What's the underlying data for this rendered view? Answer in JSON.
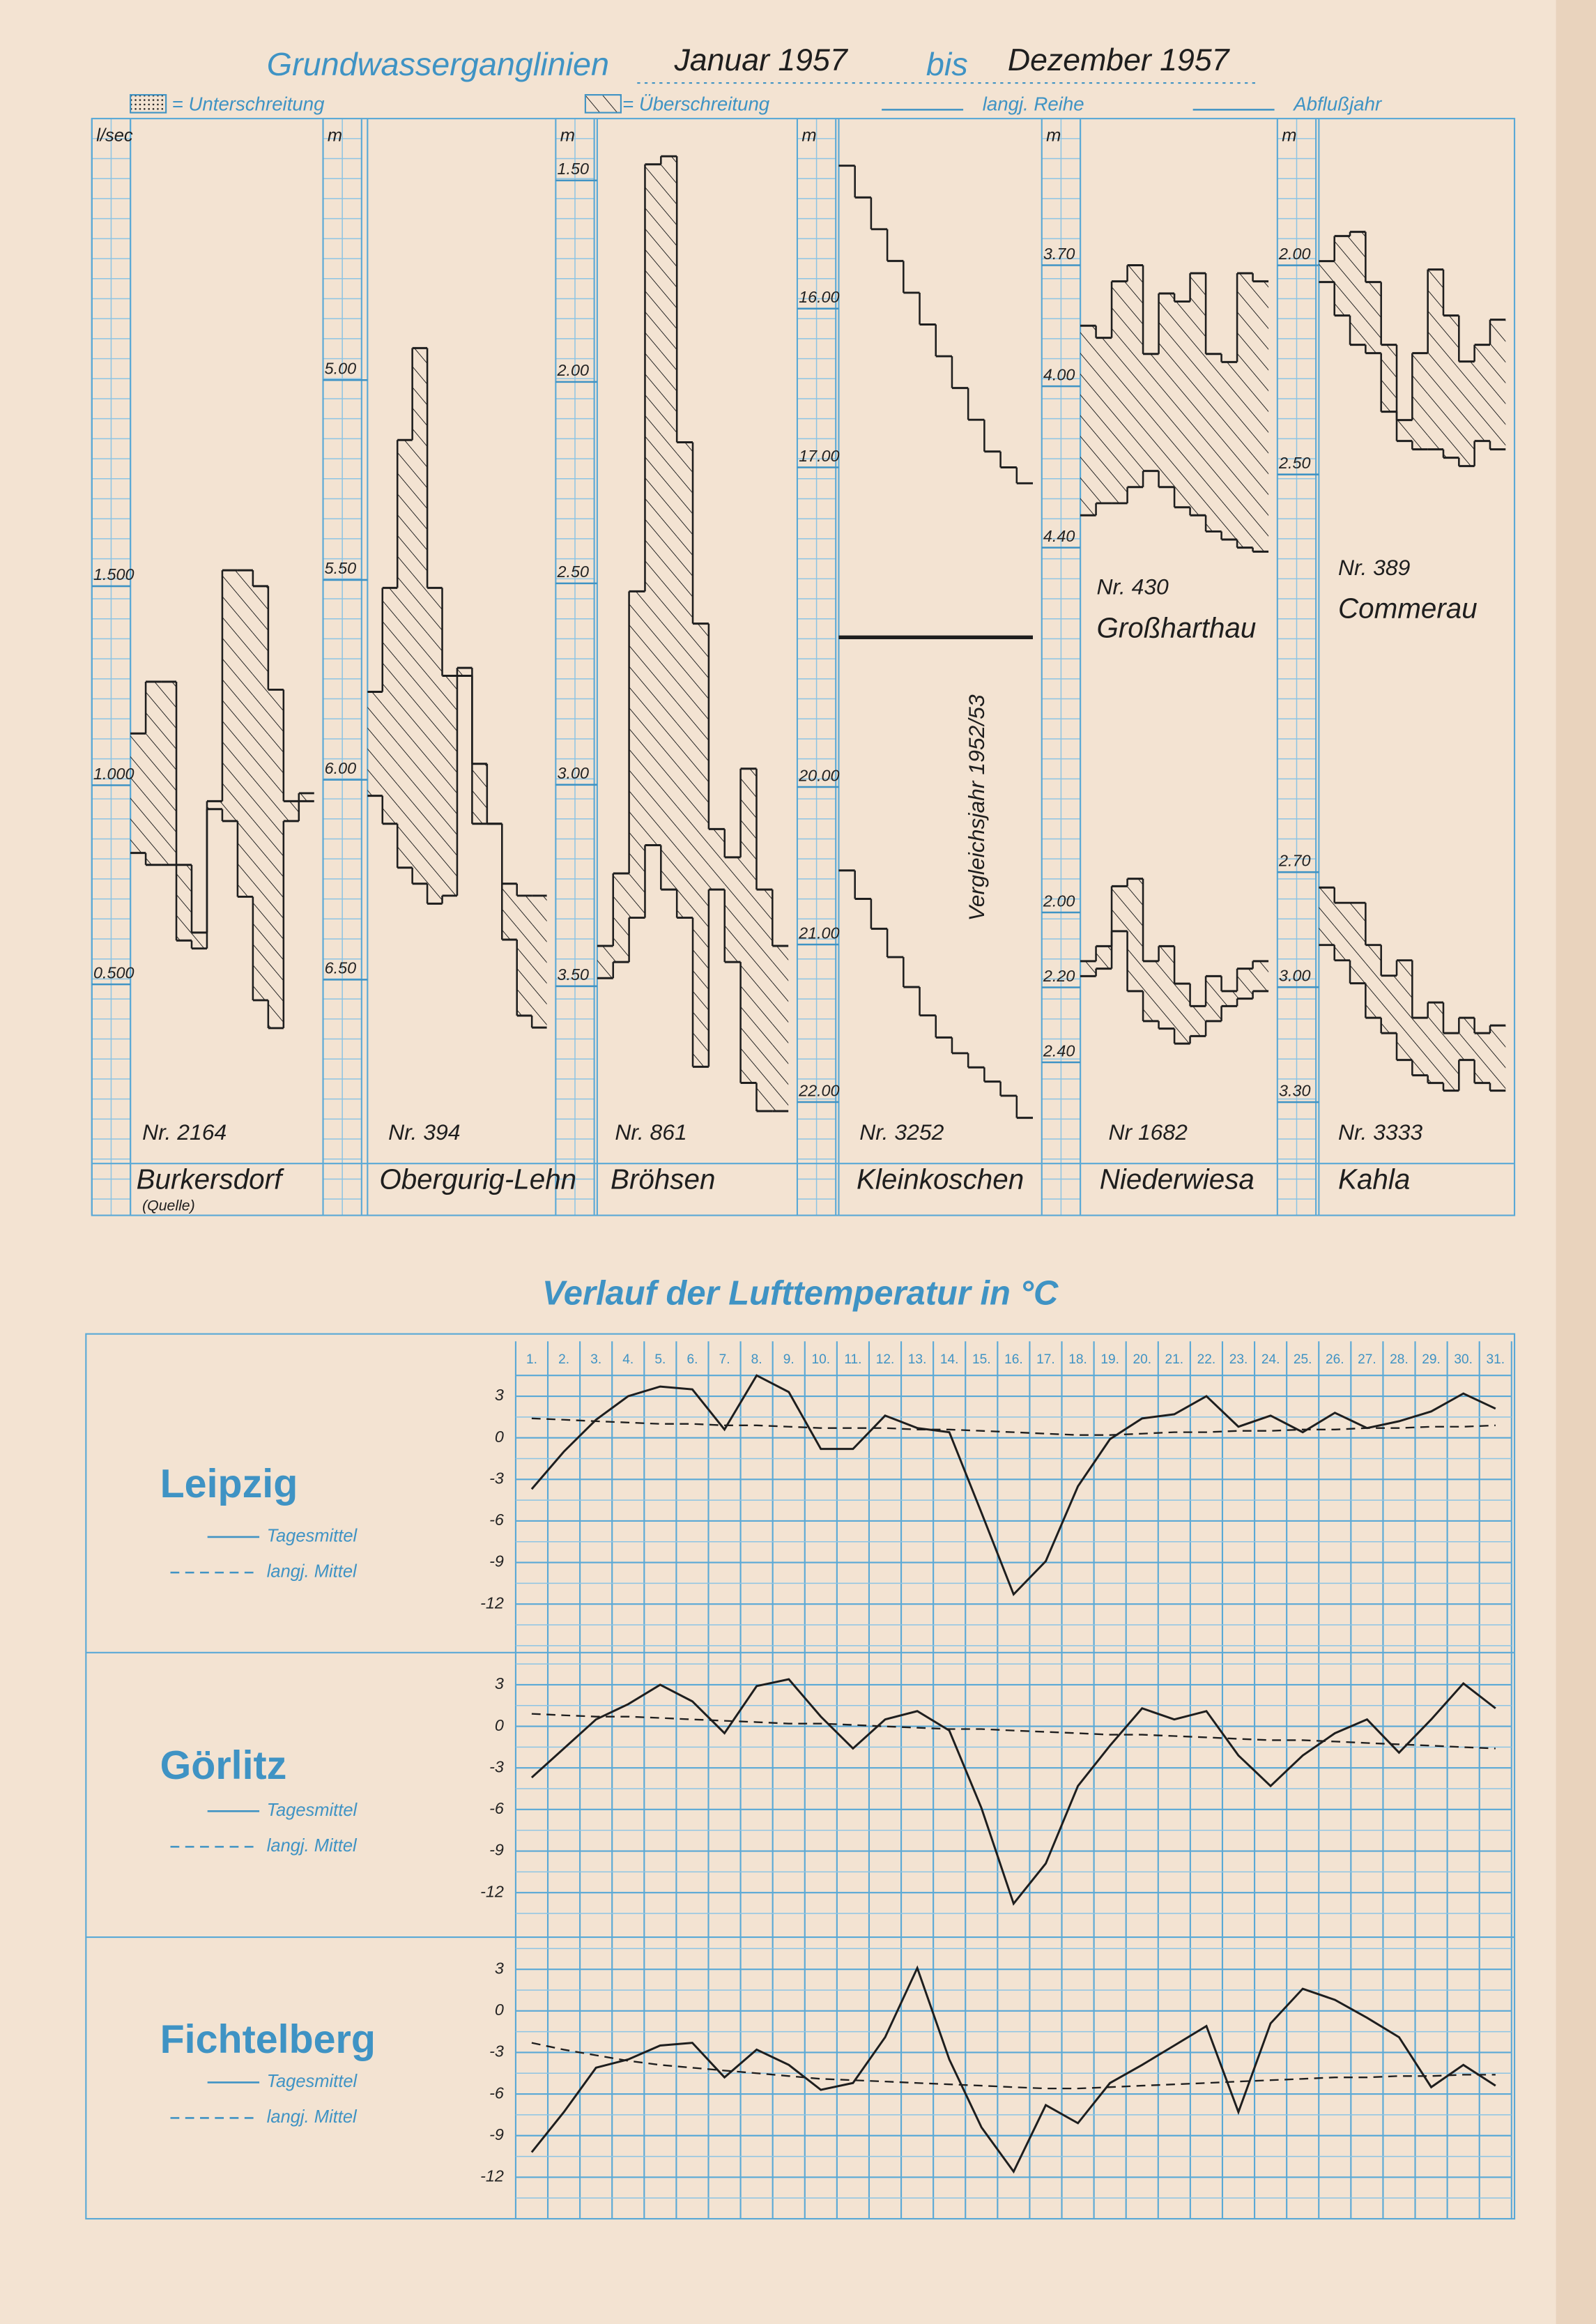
{
  "header": {
    "title": "Grundwasserganglinien",
    "from": "Januar 1957",
    "between": "bis",
    "to": "Dezember 1957",
    "legend": [
      "= Unterschreitung",
      "= Überschreitung",
      "langj. Reihe",
      "Abflußjahr"
    ],
    "temperature_title": "Verlauf der Lufttemperatur in °C"
  },
  "chart_data": [
    {
      "type": "step",
      "unit": "l/sec",
      "number": "Nr. 2164",
      "name": "Burkersdorf",
      "note": "(Quelle)",
      "ylim": [
        0.05,
        2.6
      ],
      "yticks": [
        {
          "value": 1.5,
          "label": "1.500"
        },
        {
          "value": 1.0,
          "label": "1.000"
        },
        {
          "value": 0.5,
          "label": "0.500"
        }
      ],
      "series": [
        {
          "color": "#1e1e1e",
          "values": [
            1.13,
            1.26,
            1.26,
            0.8,
            0.63,
            0.96,
            1.54,
            1.54,
            1.5,
            1.24,
            0.96,
            0.98
          ]
        },
        {
          "color": "#1e1e1e",
          "values": [
            0.83,
            0.8,
            0.8,
            0.61,
            0.59,
            0.94,
            0.91,
            0.72,
            0.46,
            0.39,
            0.91,
            0.96
          ]
        }
      ]
    },
    {
      "type": "step",
      "unit": "m",
      "number": "Nr. 394",
      "name": "Obergurig-Lehn",
      "ylim": [
        6.96,
        4.42
      ],
      "yticks": [
        {
          "value": 5.0,
          "label": "5.00"
        },
        {
          "value": 5.5,
          "label": "5.50"
        },
        {
          "value": 6.0,
          "label": "6.00"
        },
        {
          "value": 6.5,
          "label": "6.50"
        }
      ],
      "series": [
        {
          "color": "#1e1e1e",
          "values": [
            5.78,
            5.52,
            5.15,
            4.92,
            5.52,
            5.74,
            5.72,
            6.11,
            6.11,
            6.26,
            6.29,
            6.29
          ]
        },
        {
          "color": "#1e1e1e",
          "values": [
            6.04,
            6.11,
            6.22,
            6.26,
            6.31,
            6.29,
            5.74,
            5.96,
            6.11,
            6.4,
            6.59,
            6.62
          ]
        }
      ]
    },
    {
      "type": "step",
      "unit": "m",
      "number": "Nr. 861",
      "name": "Bröhsen",
      "ylim": [
        3.94,
        1.42
      ],
      "yticks": [
        {
          "value": 1.5,
          "label": "1.50"
        },
        {
          "value": 2.0,
          "label": "2.00"
        },
        {
          "value": 2.5,
          "label": "2.50"
        },
        {
          "value": 3.0,
          "label": "3.00"
        },
        {
          "value": 3.5,
          "label": "3.50"
        }
      ],
      "series": [
        {
          "color": "#1e1e1e",
          "values": [
            3.4,
            3.22,
            2.52,
            1.46,
            1.44,
            2.15,
            2.6,
            3.11,
            3.18,
            2.96,
            3.26,
            3.4
          ]
        },
        {
          "color": "#1e1e1e",
          "values": [
            3.48,
            3.44,
            3.33,
            3.15,
            3.26,
            3.33,
            3.7,
            3.26,
            3.44,
            3.74,
            3.81,
            3.81
          ]
        }
      ]
    },
    {
      "type": "step",
      "unit": "m",
      "ylim": [
        18.07,
        14.99
      ],
      "yticks": [
        {
          "value": 16,
          "label": "16.00"
        },
        {
          "value": 17,
          "label": "17.00"
        }
      ],
      "series": [
        {
          "color": "#1e1e1e",
          "values": [
            15.1,
            15.3,
            15.5,
            15.7,
            15.9,
            16.1,
            16.3,
            16.5,
            16.7,
            16.9,
            17.0,
            17.1
          ]
        }
      ]
    },
    {
      "type": "step",
      "number": "Nr. 3252",
      "name": "Kleinkoschen",
      "note": "Vergleichsjahr 1952/53",
      "ylim": [
        22.39,
        19.05
      ],
      "yticks": [
        {
          "value": 20,
          "label": "20.00"
        },
        {
          "value": 21,
          "label": "21.00"
        },
        {
          "value": 22,
          "label": "22.00"
        }
      ],
      "series": [
        {
          "color": "#1e1e1e",
          "values": [
            20.53,
            20.71,
            20.9,
            21.08,
            21.27,
            21.45,
            21.59,
            21.69,
            21.78,
            21.87,
            21.96,
            22.1
          ]
        }
      ]
    },
    {
      "type": "step",
      "unit": "m",
      "number": "Nr. 430",
      "name": "Großharthau",
      "ylim": [
        5.1,
        3.41
      ],
      "yticks": [
        {
          "value": 3.7,
          "label": "3.70"
        },
        {
          "value": 4.0,
          "label": "4.00"
        },
        {
          "value": 4.4,
          "label": "4.40"
        }
      ],
      "series": [
        {
          "color": "#1e1e1e",
          "values": [
            3.85,
            3.88,
            3.74,
            3.7,
            3.92,
            3.77,
            3.79,
            3.72,
            3.92,
            3.94,
            3.72,
            3.74
          ]
        },
        {
          "color": "#1e1e1e",
          "values": [
            4.32,
            4.29,
            4.29,
            4.25,
            4.21,
            4.25,
            4.3,
            4.32,
            4.36,
            4.38,
            4.4,
            4.41
          ]
        }
      ]
    },
    {
      "type": "step",
      "number": "Nr 1682",
      "name": "Niederwiesa",
      "ylim": [
        2.67,
        1.78
      ],
      "yticks": [
        {
          "value": 2.0,
          "label": "2.00"
        },
        {
          "value": 2.2,
          "label": "2.20"
        },
        {
          "value": 2.4,
          "label": "2.40"
        }
      ],
      "series": [
        {
          "color": "#1e1e1e",
          "values": [
            2.13,
            2.09,
            1.93,
            1.91,
            2.13,
            2.09,
            2.19,
            2.25,
            2.17,
            2.21,
            2.15,
            2.13
          ]
        },
        {
          "color": "#1e1e1e",
          "values": [
            2.17,
            2.15,
            2.05,
            2.21,
            2.29,
            2.31,
            2.35,
            2.33,
            2.29,
            2.25,
            2.23,
            2.21
          ]
        }
      ]
    },
    {
      "type": "step",
      "unit": "m",
      "number": "Nr. 389",
      "name": "Commerau",
      "ylim": [
        3.35,
        1.72
      ],
      "yticks": [
        {
          "value": 2.0,
          "label": "2.00"
        },
        {
          "value": 2.5,
          "label": "2.50"
        }
      ],
      "series": [
        {
          "color": "#1e1e1e",
          "values": [
            1.99,
            1.93,
            1.92,
            2.04,
            2.19,
            2.37,
            2.21,
            2.01,
            2.12,
            2.23,
            2.19,
            2.13
          ]
        },
        {
          "color": "#1e1e1e",
          "values": [
            2.04,
            2.12,
            2.19,
            2.21,
            2.35,
            2.42,
            2.44,
            2.44,
            2.46,
            2.48,
            2.42,
            2.44
          ]
        }
      ]
    },
    {
      "type": "step",
      "number": "Nr. 3333",
      "name": "Kahla",
      "ylim": [
        3.46,
        2.59
      ],
      "yticks": [
        {
          "value": 2.7,
          "label": "2.70"
        },
        {
          "value": 3.0,
          "label": "3.00"
        },
        {
          "value": 3.3,
          "label": "3.30"
        }
      ],
      "series": [
        {
          "color": "#1e1e1e",
          "values": [
            2.74,
            2.78,
            2.78,
            2.89,
            2.97,
            2.93,
            3.08,
            3.04,
            3.12,
            3.08,
            3.12,
            3.1
          ]
        },
        {
          "color": "#1e1e1e",
          "values": [
            2.89,
            2.93,
            2.99,
            3.08,
            3.12,
            3.19,
            3.23,
            3.25,
            3.27,
            3.19,
            3.25,
            3.27
          ]
        }
      ]
    },
    {
      "type": "line",
      "station": "Leipzig",
      "categories": [
        "1.",
        "2.",
        "3.",
        "4.",
        "5.",
        "6.",
        "7.",
        "8.",
        "9.",
        "10.",
        "11.",
        "12.",
        "13.",
        "14.",
        "15.",
        "16.",
        "17.",
        "18.",
        "19.",
        "20.",
        "21.",
        "22.",
        "23.",
        "24.",
        "25.",
        "26.",
        "27.",
        "28.",
        "29.",
        "30.",
        "31."
      ],
      "ylim": [
        -15.5,
        4.5
      ],
      "yticks": [
        3,
        0,
        -3,
        -6,
        -9,
        -12
      ],
      "grid": true,
      "series": [
        {
          "name": "Tagesmittel",
          "color": "#1e1e1e",
          "dash": false,
          "values": [
            -3.7,
            -1,
            1.3,
            3,
            3.7,
            3.5,
            0.6,
            4.5,
            3.3,
            -0.8,
            -0.8,
            1.6,
            0.7,
            0.4,
            -5.4,
            -11.3,
            -8.9,
            -3.5,
            -0.1,
            1.4,
            1.7,
            3,
            0.8,
            1.6,
            0.4,
            1.8,
            0.7,
            1.2,
            1.9,
            3.2,
            2.1
          ]
        },
        {
          "name": "langj. Mittel",
          "color": "#1e1e1e",
          "dash": true,
          "values": [
            1.4,
            1.3,
            1.2,
            1.1,
            1.0,
            1.0,
            0.9,
            0.9,
            0.8,
            0.7,
            0.7,
            0.7,
            0.6,
            0.6,
            0.5,
            0.4,
            0.3,
            0.2,
            0.2,
            0.3,
            0.4,
            0.4,
            0.5,
            0.5,
            0.6,
            0.6,
            0.7,
            0.7,
            0.8,
            0.8,
            0.9
          ]
        }
      ]
    },
    {
      "type": "line",
      "station": "Görlitz",
      "ylim": [
        -15,
        5
      ],
      "yticks": [
        3,
        0,
        -3,
        -6,
        -9,
        -12
      ],
      "grid": true,
      "series": [
        {
          "name": "Tagesmittel",
          "color": "#1e1e1e",
          "dash": false,
          "values": [
            -3.7,
            -1.6,
            0.5,
            1.6,
            3,
            1.8,
            -0.5,
            2.9,
            3.4,
            0.7,
            -1.6,
            0.5,
            1.1,
            -0.3,
            -5.9,
            -12.8,
            -9.9,
            -4.3,
            -1.4,
            1.3,
            0.5,
            1.1,
            -2.1,
            -4.3,
            -2.1,
            -0.5,
            0.5,
            -1.9,
            0.5,
            3.1,
            1.3
          ]
        },
        {
          "name": "langj. Mittel",
          "color": "#1e1e1e",
          "dash": true,
          "values": [
            0.9,
            0.8,
            0.7,
            0.7,
            0.6,
            0.5,
            0.4,
            0.3,
            0.2,
            0.2,
            0.1,
            0.0,
            -0.1,
            -0.2,
            -0.2,
            -0.3,
            -0.4,
            -0.5,
            -0.6,
            -0.6,
            -0.7,
            -0.8,
            -0.9,
            -1.0,
            -1.0,
            -1.1,
            -1.2,
            -1.3,
            -1.4,
            -1.5,
            -1.6
          ]
        }
      ]
    },
    {
      "type": "line",
      "station": "Fichtelberg",
      "ylim": [
        -15,
        5
      ],
      "yticks": [
        3,
        0,
        -3,
        -6,
        -9,
        -12
      ],
      "grid": true,
      "series": [
        {
          "name": "Tagesmittel",
          "color": "#1e1e1e",
          "dash": false,
          "values": [
            -10.2,
            -7.3,
            -4.1,
            -3.5,
            -2.5,
            -2.3,
            -4.8,
            -2.8,
            -3.9,
            -5.7,
            -5.2,
            -1.9,
            3.1,
            -3.5,
            -8.4,
            -11.6,
            -6.8,
            -8.1,
            -5.2,
            -3.9,
            -2.5,
            -1.1,
            -7.3,
            -0.9,
            1.6,
            0.8,
            -0.5,
            -1.9,
            -5.5,
            -3.9,
            -5.4
          ]
        },
        {
          "name": "langj. Mittel",
          "color": "#1e1e1e",
          "dash": true,
          "values": [
            -2.3,
            -2.8,
            -3.2,
            -3.6,
            -3.9,
            -4.1,
            -4.3,
            -4.5,
            -4.7,
            -4.9,
            -5.0,
            -5.1,
            -5.2,
            -5.3,
            -5.4,
            -5.5,
            -5.6,
            -5.6,
            -5.5,
            -5.4,
            -5.3,
            -5.2,
            -5.1,
            -5.0,
            -4.9,
            -4.8,
            -4.8,
            -4.7,
            -4.7,
            -4.6,
            -4.6
          ]
        }
      ]
    }
  ]
}
